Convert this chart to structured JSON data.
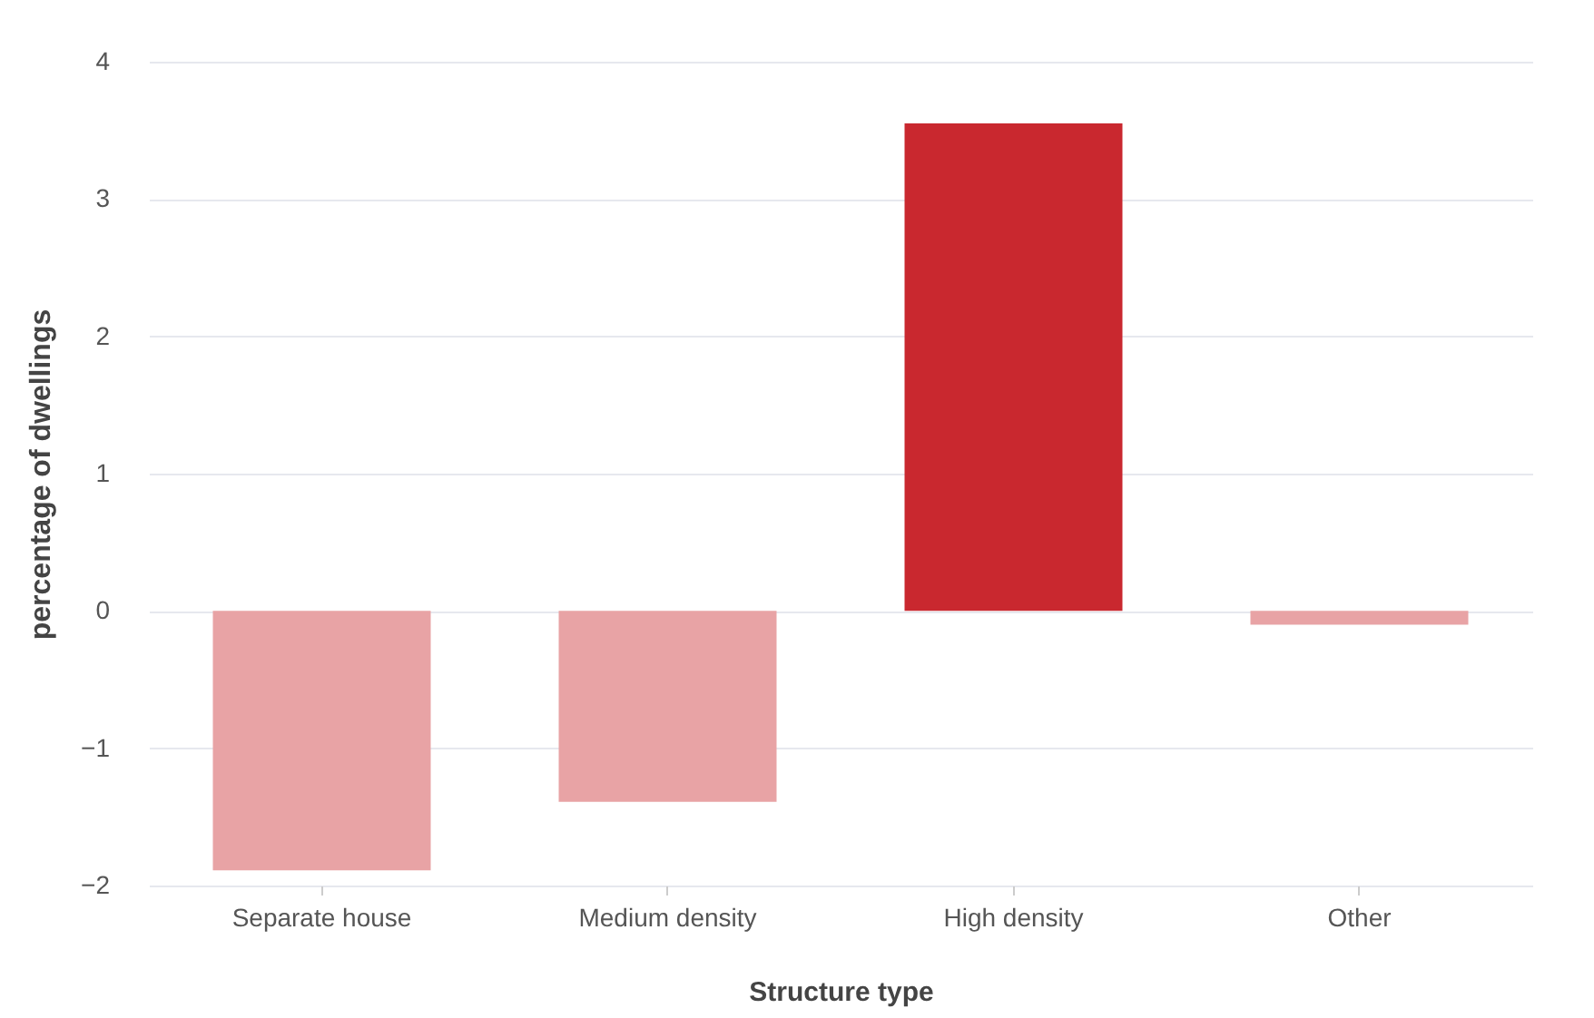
{
  "chart_data": {
    "type": "bar",
    "xlabel": "Structure type",
    "ylabel": "percentage of dwellings",
    "categories": [
      "Separate house",
      "Medium density",
      "High density",
      "Other"
    ],
    "values": [
      -1.89,
      -1.39,
      3.55,
      -0.1
    ],
    "colors": [
      "#e8a3a5",
      "#e8a3a5",
      "#c9282f",
      "#e8a3a5"
    ],
    "ylim": [
      -2,
      4
    ],
    "yticks": [
      -2,
      -1,
      0,
      1,
      2,
      3,
      4
    ],
    "grid": "y",
    "legend": false
  }
}
